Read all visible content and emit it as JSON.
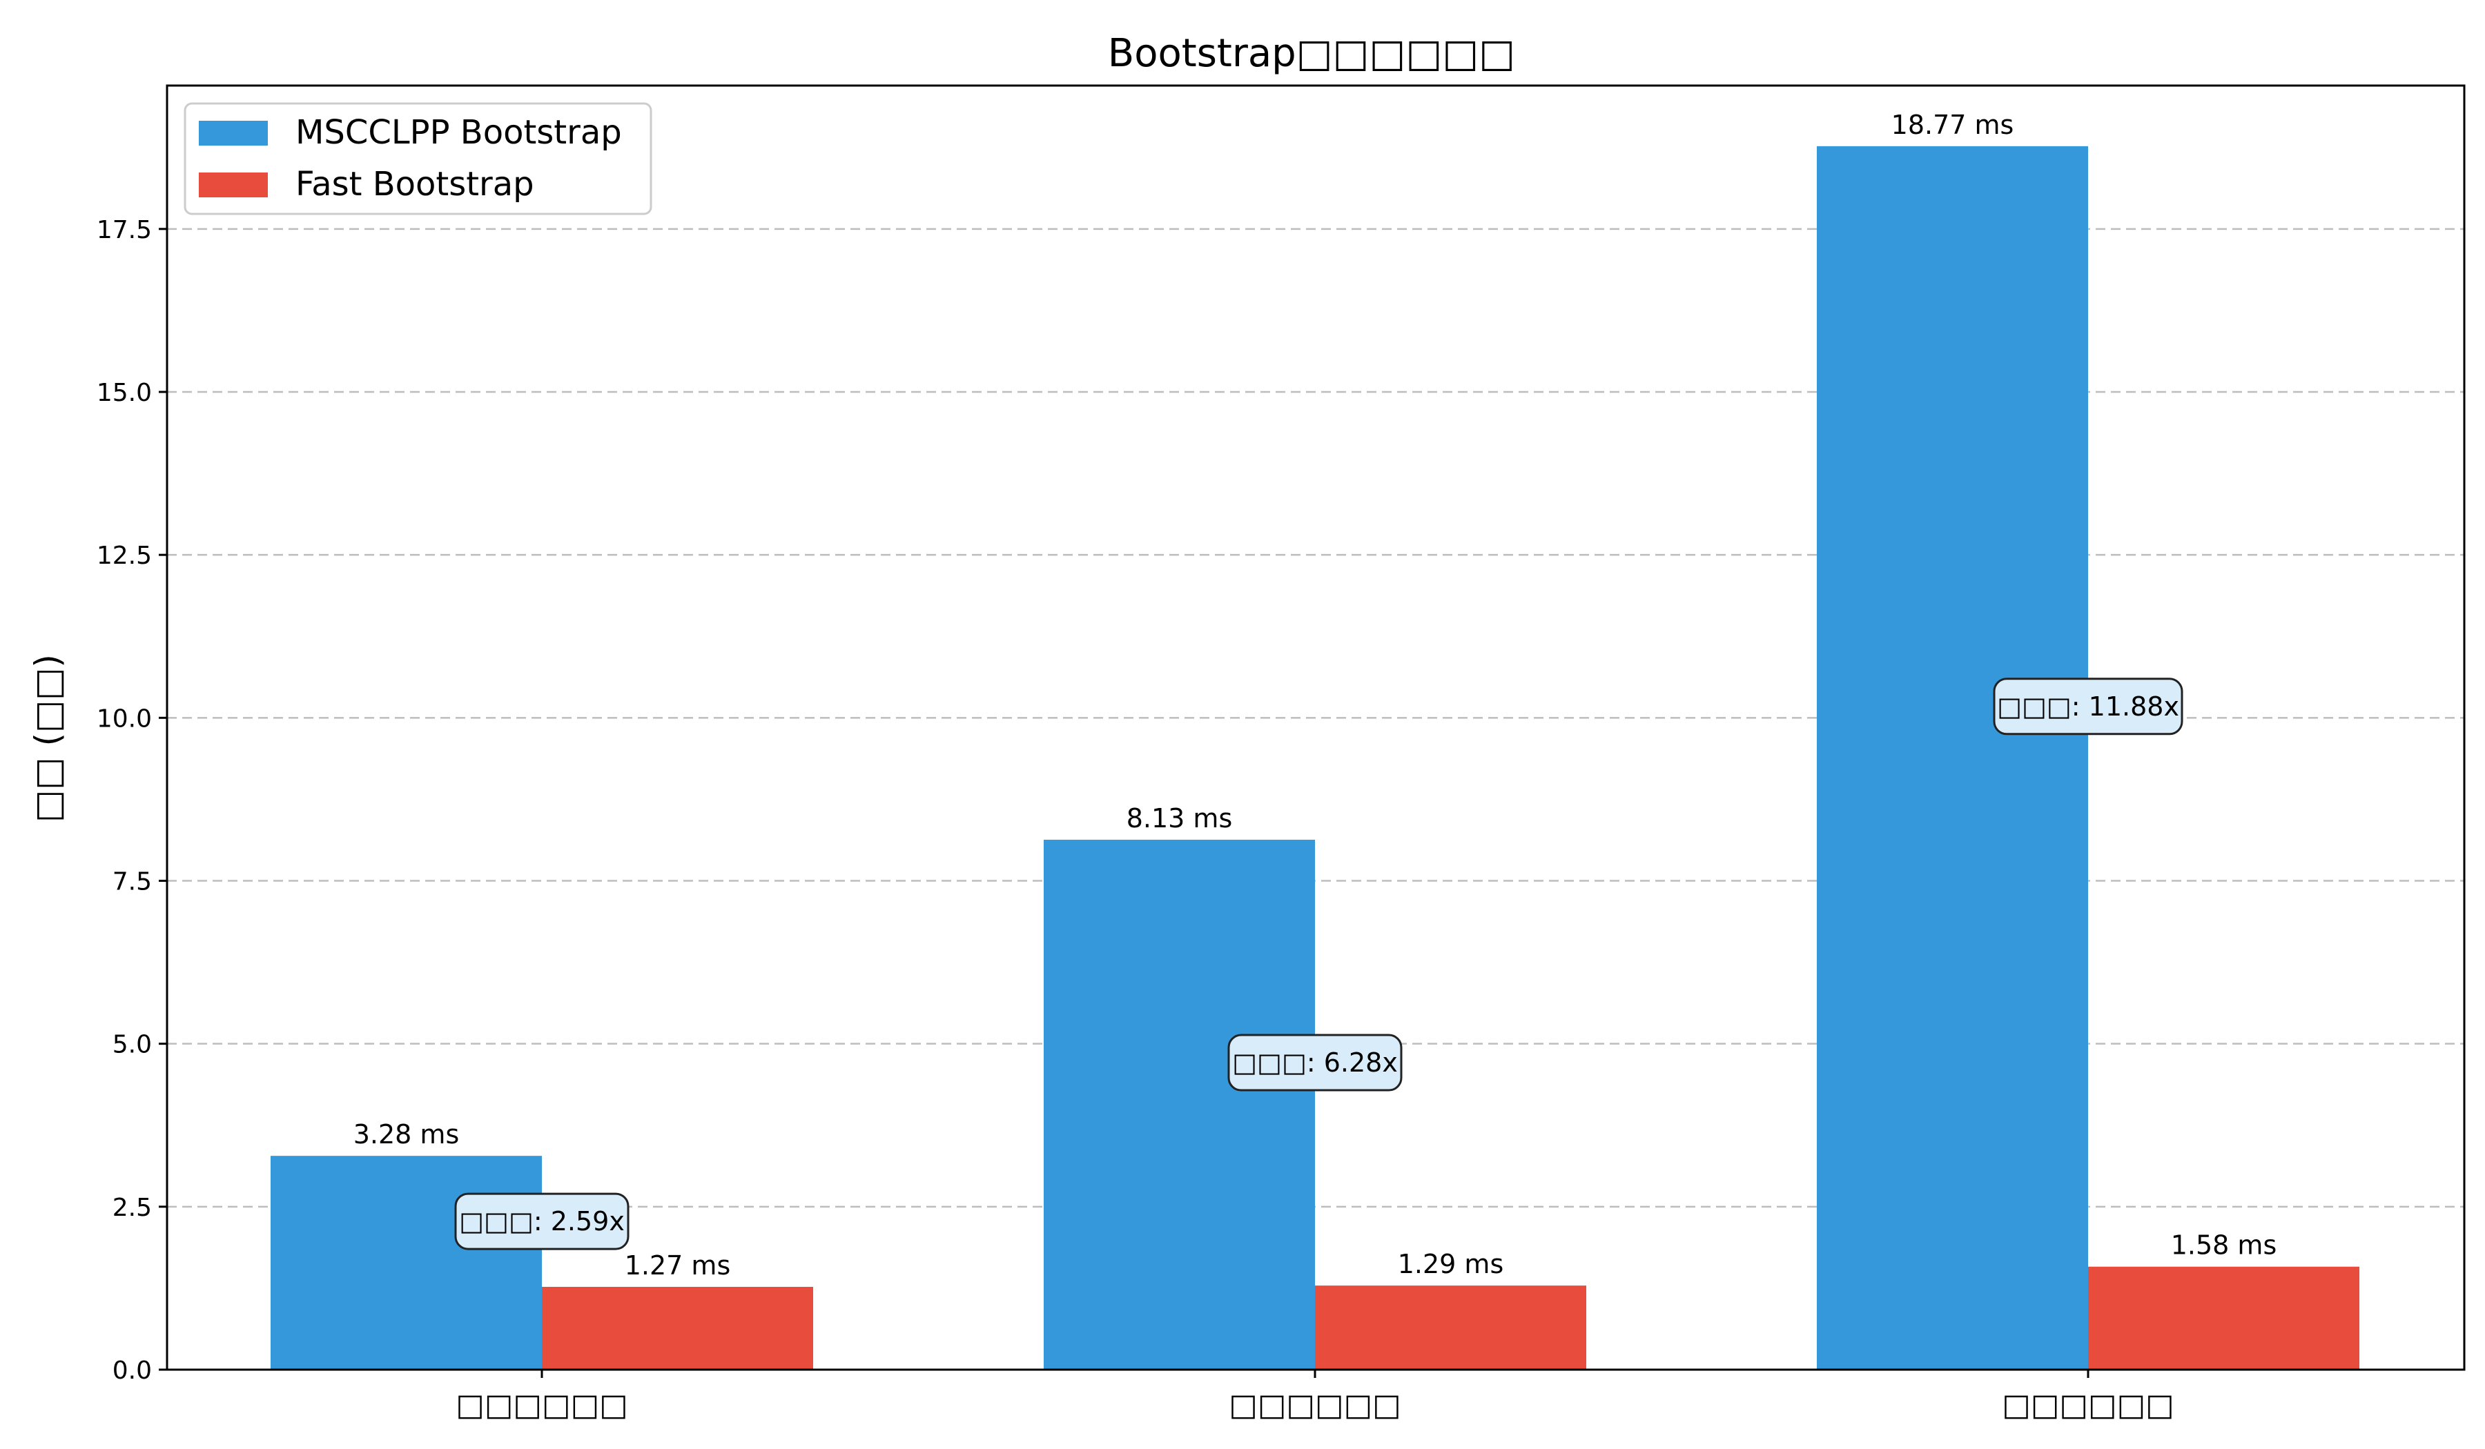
{
  "chart_data": {
    "type": "bar",
    "title": "Bootstrap□□□□□□",
    "xlabel": "",
    "ylabel": "□□ (□□)",
    "ylim": [
      0,
      19.7
    ],
    "yticks": [
      "0.0",
      "2.5",
      "5.0",
      "7.5",
      "10.0",
      "12.5",
      "15.0",
      "17.5"
    ],
    "categories": [
      "□□□□□□",
      "□□□□□□",
      "□□□□□□"
    ],
    "series": [
      {
        "name": "MSCCLPP Bootstrap",
        "color": "#3598db",
        "values": [
          3.28,
          8.13,
          18.77
        ],
        "labels": [
          "3.28 ms",
          "8.13 ms",
          "18.77 ms"
        ]
      },
      {
        "name": "Fast Bootstrap",
        "color": "#e74c3c",
        "values": [
          1.27,
          1.29,
          1.58
        ],
        "labels": [
          "1.27 ms",
          "1.29 ms",
          "1.58 ms"
        ]
      }
    ],
    "annotations": [
      "□□□: 2.59x",
      "□□□: 6.28x",
      "□□□: 11.88x"
    ],
    "grid": "y",
    "legend": "top-left"
  }
}
